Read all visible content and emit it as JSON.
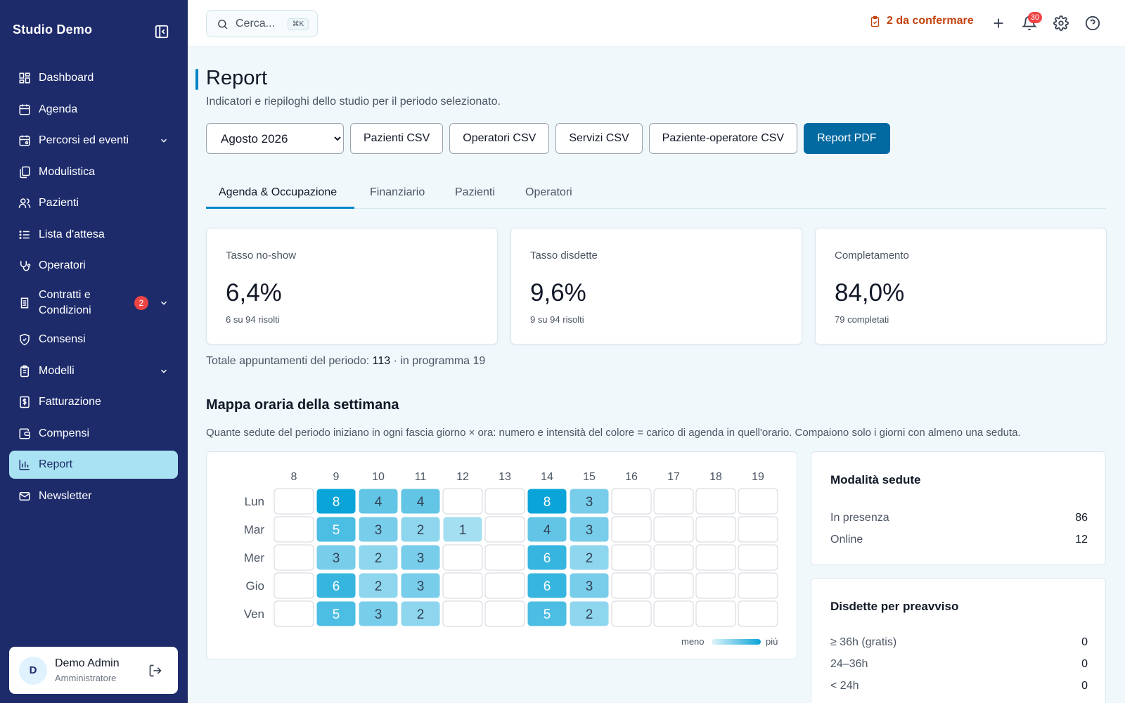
{
  "app": {
    "brand": "Studio Demo"
  },
  "sidebar": {
    "items": [
      {
        "label": "Dashboard",
        "icon": "dashboard-icon"
      },
      {
        "label": "Agenda",
        "icon": "calendar-icon"
      },
      {
        "label": "Percorsi ed eventi",
        "icon": "calendar-event-icon",
        "expandable": true
      },
      {
        "label": "Modulistica",
        "icon": "documents-icon"
      },
      {
        "label": "Pazienti",
        "icon": "users-icon"
      },
      {
        "label": "Lista d'attesa",
        "icon": "list-icon"
      },
      {
        "label": "Operatori",
        "icon": "stethoscope-icon"
      },
      {
        "label": "Contratti e Condizioni",
        "icon": "contract-icon",
        "badge": "2",
        "expandable": true
      },
      {
        "label": "Consensi",
        "icon": "shield-check-icon"
      },
      {
        "label": "Modelli",
        "icon": "clipboard-icon",
        "expandable": true
      },
      {
        "label": "Fatturazione",
        "icon": "invoice-icon"
      },
      {
        "label": "Compensi",
        "icon": "wallet-icon"
      },
      {
        "label": "Report",
        "icon": "bar-chart-icon",
        "active": true
      },
      {
        "label": "Newsletter",
        "icon": "mail-icon"
      }
    ],
    "user": {
      "initial": "D",
      "name": "Demo Admin",
      "role": "Amministratore"
    }
  },
  "topbar": {
    "search_placeholder": "Cerca...",
    "search_shortcut": "⌘K",
    "pending_count": "2",
    "pending_label": "da confermare",
    "notifications_count": "30"
  },
  "page": {
    "title": "Report",
    "subtitle": "Indicatori e riepiloghi dello studio per il periodo selezionato.",
    "period": "Agosto 2026",
    "buttons": {
      "patients_csv": "Pazienti CSV",
      "operators_csv": "Operatori CSV",
      "services_csv": "Servizi CSV",
      "patient_operator_csv": "Paziente-operatore CSV",
      "report_pdf": "Report PDF"
    },
    "tabs": [
      "Agenda & Occupazione",
      "Finanziario",
      "Pazienti",
      "Operatori"
    ],
    "active_tab": 0
  },
  "kpis": [
    {
      "label": "Tasso no-show",
      "value": "6,4%",
      "sub": "6 su 94 risolti"
    },
    {
      "label": "Tasso disdette",
      "value": "9,6%",
      "sub": "9 su 94 risolti"
    },
    {
      "label": "Completamento",
      "value": "84,0%",
      "sub": "79 completati"
    }
  ],
  "totals": {
    "prefix": "Totale appuntamenti del periodo:",
    "total": "113",
    "suffix": "· in programma 19"
  },
  "heatmap": {
    "title": "Mappa oraria della settimana",
    "description": "Quante sedute del periodo iniziano in ogni fascia giorno × ora: numero e intensità del colore = carico di agenda in quell'orario. Compaiono solo i giorni con almeno una seduta.",
    "legend_less": "meno",
    "legend_more": "più",
    "colors": {
      "low": "#d9f2fa",
      "high": "#0aa4d8",
      "empty_border": "#d1d5db"
    }
  },
  "chart_data": {
    "type": "heatmap",
    "x": [
      "8",
      "9",
      "10",
      "11",
      "12",
      "13",
      "14",
      "15",
      "16",
      "17",
      "18",
      "19"
    ],
    "y": [
      "Lun",
      "Mar",
      "Mer",
      "Gio",
      "Ven"
    ],
    "values": [
      [
        0,
        8,
        4,
        4,
        0,
        0,
        8,
        3,
        0,
        0,
        0,
        0
      ],
      [
        0,
        5,
        3,
        2,
        1,
        0,
        4,
        3,
        0,
        0,
        0,
        0
      ],
      [
        0,
        3,
        2,
        3,
        0,
        0,
        6,
        2,
        0,
        0,
        0,
        0
      ],
      [
        0,
        6,
        2,
        3,
        0,
        0,
        6,
        3,
        0,
        0,
        0,
        0
      ],
      [
        0,
        5,
        3,
        2,
        0,
        0,
        5,
        2,
        0,
        0,
        0,
        0
      ]
    ],
    "max": 8
  },
  "modalities": {
    "title": "Modalità sedute",
    "rows": [
      {
        "label": "In presenza",
        "value": "86"
      },
      {
        "label": "Online",
        "value": "12"
      }
    ]
  },
  "cancellations": {
    "title": "Disdette per preavviso",
    "rows": [
      {
        "label": "≥ 36h (gratis)",
        "value": "0"
      },
      {
        "label": "24–36h",
        "value": "0"
      },
      {
        "label": "< 24h",
        "value": "0"
      }
    ]
  }
}
